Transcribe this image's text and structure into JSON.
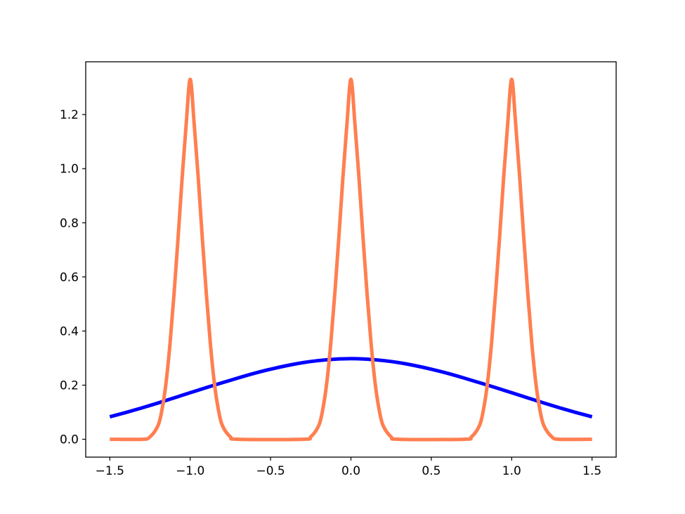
{
  "chart_data": {
    "type": "line",
    "title": "",
    "xlabel": "",
    "ylabel": "",
    "xlim": [
      -1.65,
      1.65
    ],
    "ylim": [
      -0.066,
      1.395
    ],
    "grid": false,
    "x_ticks": [
      {
        "value": -1.5,
        "label": "−1.5"
      },
      {
        "value": -1.0,
        "label": "−1.0"
      },
      {
        "value": -0.5,
        "label": "−0.5"
      },
      {
        "value": 0.0,
        "label": "0.0"
      },
      {
        "value": 0.5,
        "label": "0.5"
      },
      {
        "value": 1.0,
        "label": "1.0"
      },
      {
        "value": 1.5,
        "label": "1.5"
      }
    ],
    "y_ticks": [
      {
        "value": 0.0,
        "label": "0.0"
      },
      {
        "value": 0.2,
        "label": "0.2"
      },
      {
        "value": 0.4,
        "label": "0.4"
      },
      {
        "value": 0.6,
        "label": "0.6"
      },
      {
        "value": 0.8,
        "label": "0.8"
      },
      {
        "value": 1.0,
        "label": "1.0"
      },
      {
        "value": 1.2,
        "label": "1.2"
      }
    ],
    "series": [
      {
        "color": "#0000ff",
        "x": [
          -1.5,
          -1.4,
          -1.3,
          -1.2,
          -1.1,
          -1.0,
          -0.9,
          -0.8,
          -0.7,
          -0.6,
          -0.5,
          -0.4,
          -0.3,
          -0.2,
          -0.1,
          0.0,
          0.1,
          0.2,
          0.3,
          0.4,
          0.5,
          0.6,
          0.7,
          0.8,
          0.9,
          1.0,
          1.1,
          1.2,
          1.3,
          1.4,
          1.5
        ],
        "y": [
          0.083,
          0.099,
          0.116,
          0.134,
          0.153,
          0.172,
          0.191,
          0.209,
          0.227,
          0.244,
          0.259,
          0.272,
          0.283,
          0.291,
          0.296,
          0.298,
          0.296,
          0.291,
          0.283,
          0.272,
          0.259,
          0.244,
          0.227,
          0.209,
          0.191,
          0.172,
          0.153,
          0.134,
          0.116,
          0.099,
          0.083
        ]
      },
      {
        "color": "#ff7f50",
        "x": [
          -1.5,
          -1.3,
          -1.25,
          -1.2,
          -1.175,
          -1.15,
          -1.125,
          -1.1,
          -1.075,
          -1.05,
          -1.025,
          -1.0,
          -0.975,
          -0.95,
          -0.925,
          -0.9,
          -0.875,
          -0.85,
          -0.825,
          -0.8,
          -0.75,
          -0.7,
          -0.3,
          -0.25,
          -0.2,
          -0.175,
          -0.15,
          -0.125,
          -0.1,
          -0.075,
          -0.05,
          -0.025,
          0.0,
          0.025,
          0.05,
          0.075,
          0.1,
          0.125,
          0.15,
          0.175,
          0.2,
          0.25,
          0.3,
          0.7,
          0.75,
          0.8,
          0.825,
          0.85,
          0.875,
          0.9,
          0.925,
          0.95,
          0.975,
          1.0,
          1.025,
          1.05,
          1.075,
          1.1,
          1.125,
          1.15,
          1.175,
          1.2,
          1.25,
          1.3,
          1.5
        ],
        "y": [
          0.0,
          0.0,
          0.009,
          0.051,
          0.111,
          0.21,
          0.357,
          0.541,
          0.747,
          0.967,
          1.164,
          1.33,
          1.164,
          0.967,
          0.747,
          0.541,
          0.357,
          0.21,
          0.111,
          0.051,
          0.009,
          0.0,
          0.0,
          0.009,
          0.051,
          0.111,
          0.21,
          0.357,
          0.541,
          0.747,
          0.967,
          1.164,
          1.33,
          1.164,
          0.967,
          0.747,
          0.541,
          0.357,
          0.21,
          0.111,
          0.051,
          0.009,
          0.0,
          0.0,
          0.009,
          0.051,
          0.111,
          0.21,
          0.357,
          0.541,
          0.747,
          0.967,
          1.164,
          1.33,
          1.164,
          0.967,
          0.747,
          0.541,
          0.357,
          0.21,
          0.111,
          0.051,
          0.009,
          0.0,
          0.0
        ]
      }
    ]
  }
}
